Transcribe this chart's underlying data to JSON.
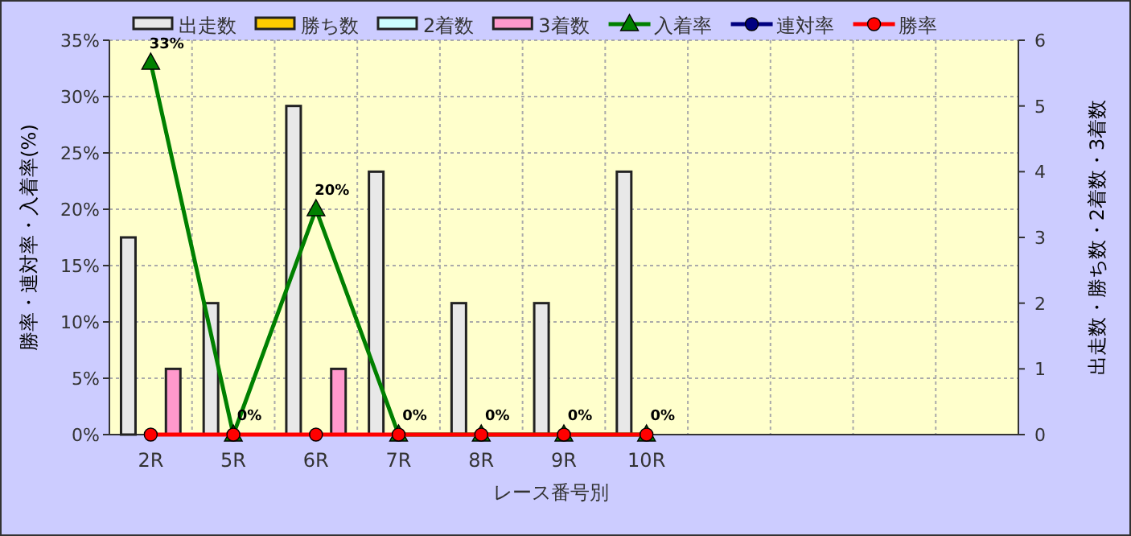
{
  "chart_data": {
    "type": "bar",
    "categories": [
      "2R",
      "5R",
      "6R",
      "7R",
      "8R",
      "9R",
      "10R",
      null,
      null,
      null,
      null
    ],
    "xlabel": "レース番号別",
    "ylabel": "勝率・連対率・入着率(%)",
    "y2label": "出走数・勝ち数・2着数・3着数",
    "ylim": [
      0,
      35
    ],
    "yticks": [
      {
        "value": 0,
        "label": "0%"
      },
      {
        "value": 5,
        "label": "5%"
      },
      {
        "value": 10,
        "label": "10%"
      },
      {
        "value": 15,
        "label": "15%"
      },
      {
        "value": 20,
        "label": "20%"
      },
      {
        "value": 25,
        "label": "25%"
      },
      {
        "value": 30,
        "label": "30%"
      },
      {
        "value": 35,
        "label": "35%"
      }
    ],
    "y2lim": [
      0,
      6
    ],
    "y2ticks": [
      0,
      1,
      2,
      3,
      4,
      5,
      6
    ],
    "grid": true,
    "legend": "top",
    "series": [
      {
        "name": "出走数",
        "axis": "y2",
        "color": "#e8e8e8",
        "values": [
          3,
          2,
          5,
          4,
          2,
          2,
          4,
          null,
          null,
          null,
          null
        ]
      },
      {
        "name": "勝ち数",
        "axis": "y2",
        "color": "#ffcc00",
        "values": [
          0,
          0,
          0,
          0,
          0,
          0,
          0,
          null,
          null,
          null,
          null
        ]
      },
      {
        "name": "2着数",
        "axis": "y2",
        "color": "#ccffff",
        "values": [
          0,
          0,
          0,
          0,
          0,
          0,
          0,
          null,
          null,
          null,
          null
        ]
      },
      {
        "name": "3着数",
        "axis": "y2",
        "color": "#ff99cc",
        "values": [
          1,
          0,
          1,
          0,
          0,
          0,
          0,
          null,
          null,
          null,
          null
        ]
      },
      {
        "name": "入着率",
        "type": "line",
        "axis": "y",
        "color": "#008000",
        "marker": "triangle",
        "values": [
          33,
          0,
          20,
          0,
          0,
          0,
          0,
          null,
          null,
          null,
          null
        ],
        "value_labels": [
          "33%",
          "0%",
          "20%",
          "0%",
          "0%",
          "0%",
          "0%",
          null,
          null,
          null,
          null
        ]
      },
      {
        "name": "連対率",
        "type": "line",
        "axis": "y",
        "color": "#000080",
        "marker": "circle",
        "values": [
          null,
          null,
          null,
          null,
          null,
          null,
          null,
          null,
          null,
          null,
          null
        ]
      },
      {
        "name": "勝率",
        "type": "line",
        "axis": "y",
        "color": "#ff0000",
        "marker": "circle",
        "values": [
          0,
          0,
          0,
          0,
          0,
          0,
          0,
          null,
          null,
          null,
          null
        ]
      }
    ]
  }
}
